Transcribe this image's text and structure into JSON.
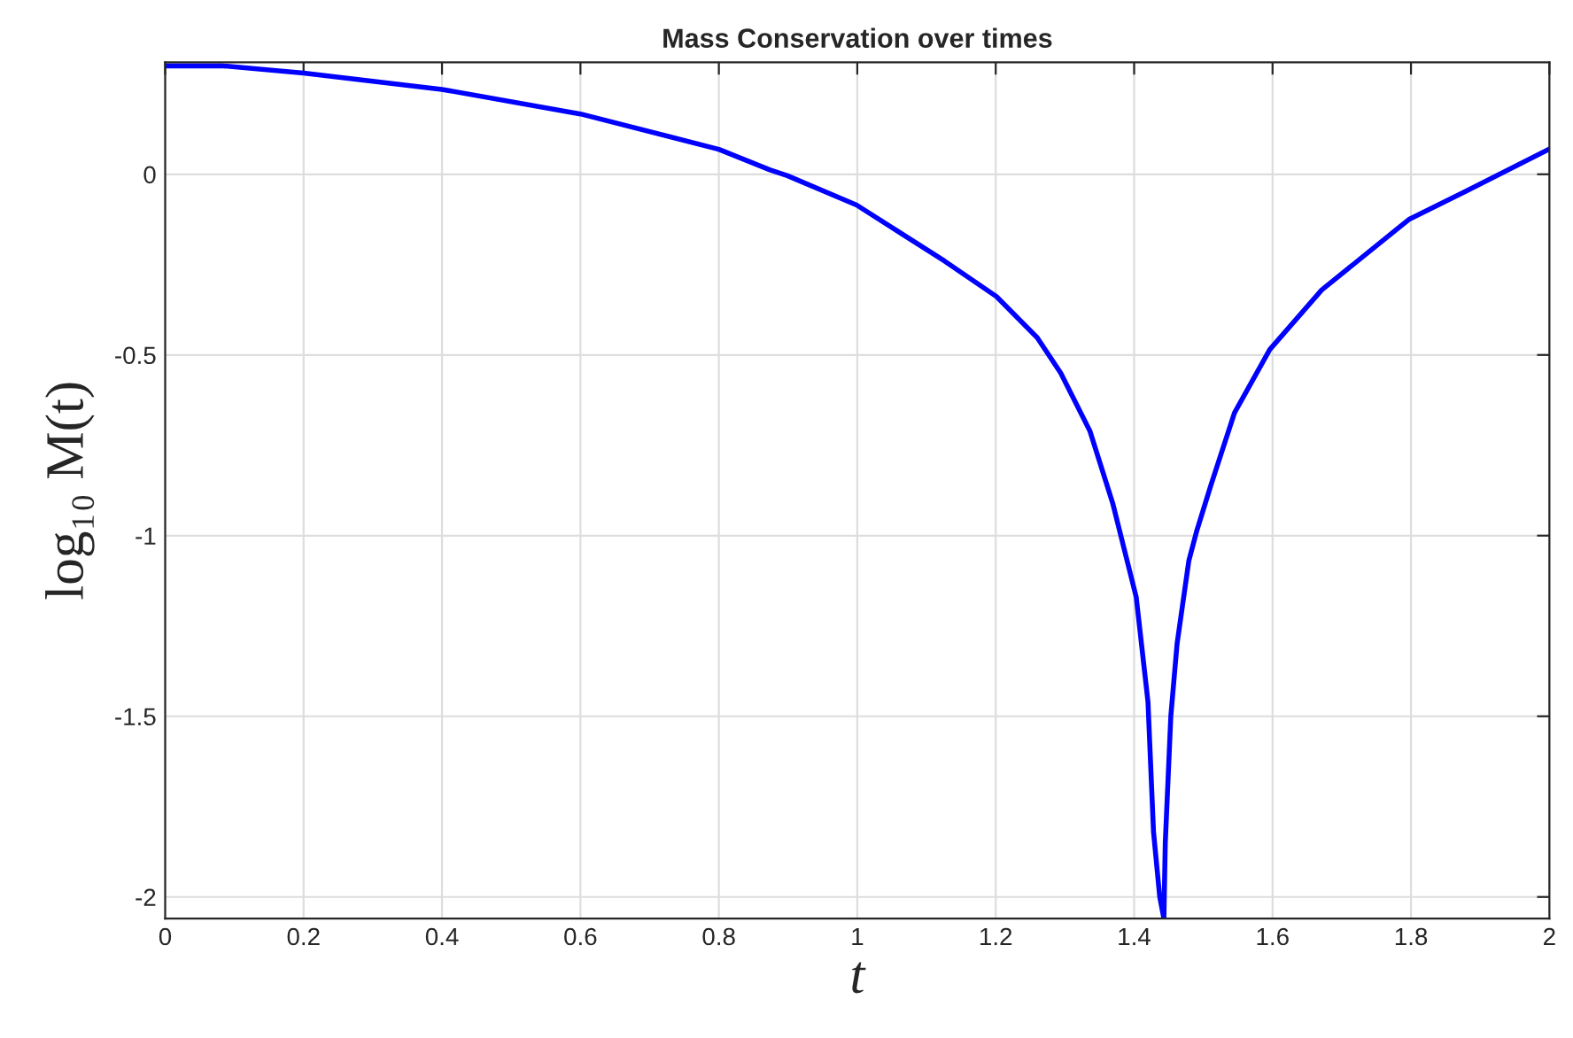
{
  "chart_data": {
    "type": "line",
    "title": "Mass Conservation over times",
    "xlabel": "t",
    "ylabel": "log₁₀ M(t)",
    "series": [
      {
        "color": "#0000ff",
        "x": [
          0,
          0.084,
          0.2,
          0.4,
          0.6,
          0.8,
          0.874,
          0.899,
          0.999,
          1.126,
          1.201,
          1.26,
          1.294,
          1.336,
          1.369,
          1.403,
          1.42,
          1.428,
          1.437,
          1.443,
          1.445,
          1.453,
          1.462,
          1.479,
          1.49,
          1.511,
          1.545,
          1.596,
          1.671,
          1.797,
          1.881,
          2.0
        ],
        "values": [
          0.3,
          0.3,
          0.28,
          0.235,
          0.167,
          0.069,
          0.012,
          -0.004,
          -0.085,
          -0.24,
          -0.338,
          -0.452,
          -0.55,
          -0.71,
          -0.91,
          -1.17,
          -1.46,
          -1.82,
          -2.0,
          -2.06,
          -1.85,
          -1.5,
          -1.3,
          -1.07,
          -0.99,
          -0.86,
          -0.66,
          -0.485,
          -0.32,
          -0.125,
          -0.045,
          0.07
        ]
      }
    ],
    "xlim": [
      0,
      2
    ],
    "ylim": [
      -2.06,
      0.31
    ],
    "xticks": [
      0,
      0.2,
      0.4,
      0.6,
      0.8,
      1,
      1.2,
      1.4,
      1.6,
      1.8,
      2
    ],
    "yticks": [
      -2,
      -1.5,
      -1,
      -0.5,
      0
    ],
    "grid": true,
    "line_style": "solid",
    "marker": "none"
  }
}
